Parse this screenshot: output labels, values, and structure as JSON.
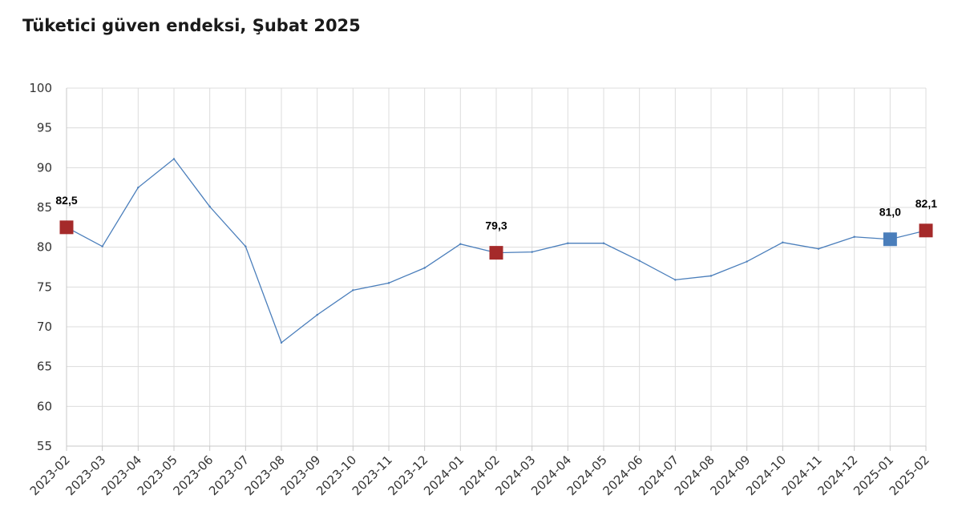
{
  "title": "Tüketici güven endeksi, Şubat 2025",
  "chart_data": {
    "type": "line",
    "title": "Tüketici güven endeksi, Şubat 2025",
    "xlabel": "",
    "ylabel": "",
    "ylim": [
      55,
      100
    ],
    "yticks": [
      "55",
      "60",
      "65",
      "70",
      "75",
      "80",
      "85",
      "90",
      "95",
      "100"
    ],
    "grid": true,
    "categories": [
      "2023-02",
      "2023-03",
      "2023-04",
      "2023-05",
      "2023-06",
      "2023-07",
      "2023-08",
      "2023-09",
      "2023-10",
      "2023-11",
      "2023-12",
      "2024-01",
      "2024-02",
      "2024-03",
      "2024-04",
      "2024-05",
      "2024-06",
      "2024-07",
      "2024-08",
      "2024-09",
      "2024-10",
      "2024-11",
      "2024-12",
      "2025-01",
      "2025-02"
    ],
    "series": [
      {
        "values": [
          82.5,
          80.1,
          87.5,
          91.1,
          85.1,
          80.1,
          68.0,
          71.5,
          74.6,
          75.5,
          77.4,
          80.4,
          79.3,
          79.4,
          80.5,
          80.5,
          78.3,
          75.9,
          76.4,
          78.2,
          80.6,
          79.8,
          81.3,
          81.0,
          82.1
        ],
        "color": "#4a7ebb"
      }
    ],
    "highlights": [
      {
        "category": "2023-02",
        "value": 82.5,
        "label": "82,5",
        "color": "#a52a2a"
      },
      {
        "category": "2024-02",
        "value": 79.3,
        "label": "79,3",
        "color": "#a52a2a"
      },
      {
        "category": "2025-01",
        "value": 81.0,
        "label": "81,0",
        "color": "#4a7ebb"
      },
      {
        "category": "2025-02",
        "value": 82.1,
        "label": "82,1",
        "color": "#a52a2a"
      }
    ]
  }
}
